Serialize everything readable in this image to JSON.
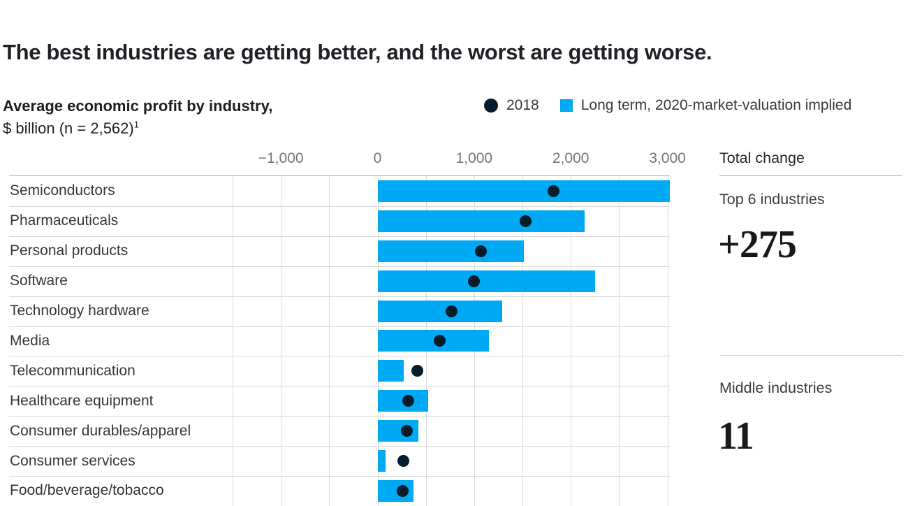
{
  "page": {
    "title": "The best industries are getting better, and the worst are getting worse.",
    "subtitle_bold": "Average economic profit by industry,",
    "subtitle_unit": "$ billion (n = 2,562)",
    "subtitle_footnote_marker": "1"
  },
  "legend": {
    "dot_label": "2018",
    "bar_label": "Long term, 2020-market-valuation implied"
  },
  "colors": {
    "bar": "#00a9f4",
    "dot": "#051c2c",
    "gridline": "#dcdcdc",
    "axis_line": "#b3b3b3",
    "row_separator": "#d8d8d8",
    "title_text": "#1f2126",
    "body_text": "#333639",
    "axis_text": "#757575"
  },
  "chart_data": {
    "type": "bar",
    "orientation": "horizontal",
    "title": "Average economic profit by industry, $ billion (n = 2,562)",
    "categories": [
      "Semiconductors",
      "Pharmaceuticals",
      "Personal products",
      "Software",
      "Technology hardware",
      "Media",
      "Telecommunication",
      "Healthcare equipment",
      "Consumer durables/apparel",
      "Consumer services",
      "Food/beverage/tobacco"
    ],
    "series": [
      {
        "name": "2018",
        "marker": "dot",
        "values": [
          1820,
          1530,
          1070,
          1000,
          765,
          645,
          415,
          320,
          300,
          265,
          260
        ]
      },
      {
        "name": "Long term, 2020-market-valuation implied",
        "marker": "bar",
        "values": [
          3025,
          2140,
          1510,
          2250,
          1290,
          1150,
          270,
          520,
          420,
          80,
          370
        ]
      }
    ],
    "x_ticks": [
      -1000,
      0,
      1000,
      2000,
      3000
    ],
    "x_tick_labels": [
      "−1,000",
      "0",
      "1,000",
      "2,000",
      "3,000"
    ],
    "xlim": [
      -1500,
      3025
    ],
    "gridline_step": 500,
    "grid": true,
    "legend_position": "top-right"
  },
  "side_panel": {
    "heading": "Total change",
    "groups": [
      {
        "label": "Top 6 industries",
        "value": "+275"
      },
      {
        "label": "Middle industries",
        "value": "11"
      }
    ]
  }
}
